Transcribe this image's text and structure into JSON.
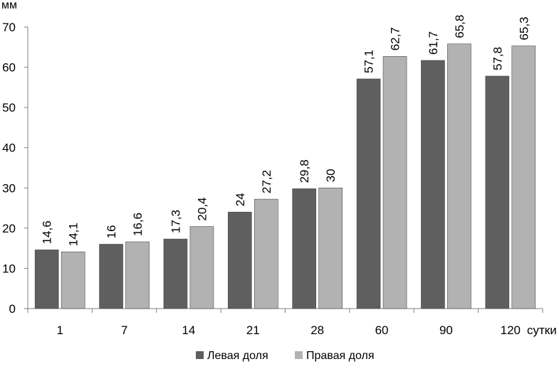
{
  "chart_data": {
    "type": "bar",
    "title": "",
    "xlabel": "сутки",
    "ylabel": "мм",
    "ylim": [
      0,
      70
    ],
    "yticks": [
      0,
      10,
      20,
      30,
      40,
      50,
      60,
      70
    ],
    "categories": [
      "1",
      "7",
      "14",
      "21",
      "28",
      "60",
      "90",
      "120"
    ],
    "series": [
      {
        "name": "Левая доля",
        "color": "#5f5f5f",
        "values": [
          14.6,
          16,
          17.3,
          24,
          29.8,
          57.1,
          61.7,
          57.8
        ],
        "labels": [
          "14,6",
          "16",
          "17,3",
          "24",
          "29,8",
          "57,1",
          "61,7",
          "57,8"
        ]
      },
      {
        "name": "Правая доля",
        "color": "#b2b2b2",
        "values": [
          14.1,
          16.6,
          20.4,
          27.2,
          30,
          62.7,
          65.8,
          65.3
        ],
        "labels": [
          "14,1",
          "16,6",
          "20,4",
          "27,2",
          "30",
          "62,7",
          "65,8",
          "65,3"
        ]
      }
    ],
    "grid": false,
    "legend_position": "bottom-center"
  }
}
